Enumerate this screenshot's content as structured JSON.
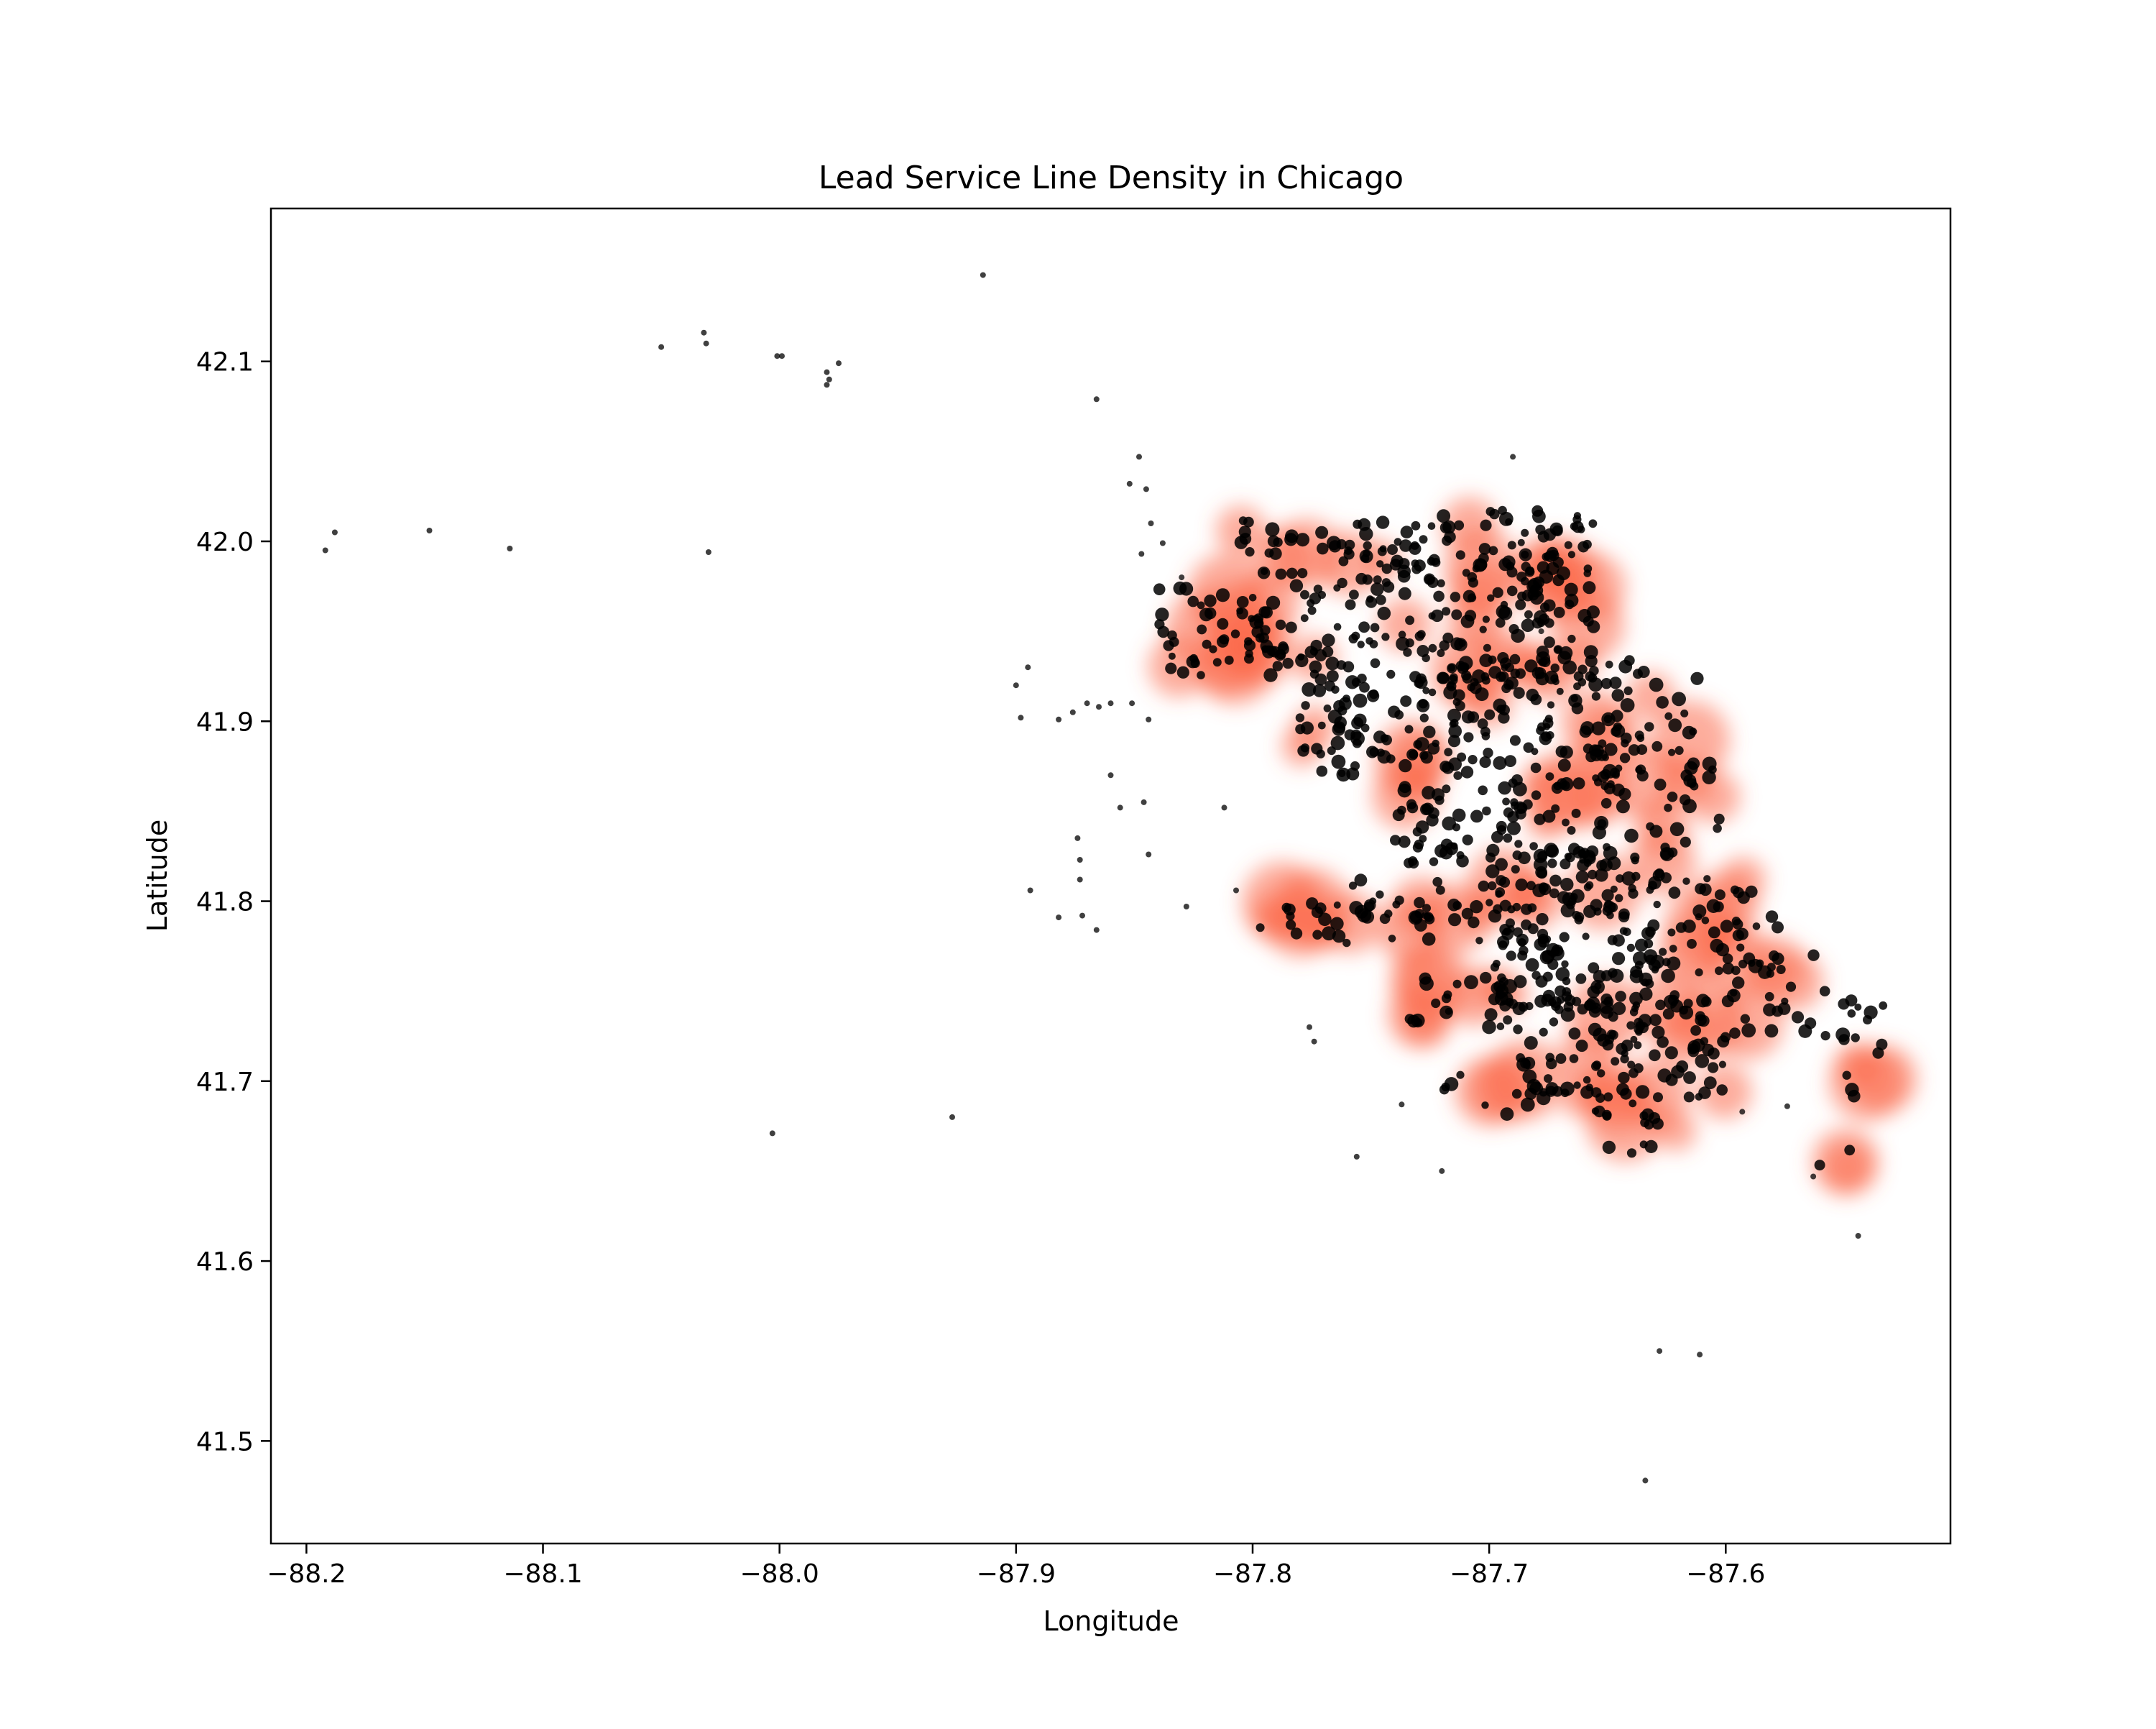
{
  "chart_data": {
    "type": "scatter",
    "title": "Lead Service Line Density in Chicago",
    "xlabel": "Longitude",
    "ylabel": "Latitude",
    "xlim": [
      -88.215,
      -87.505
    ],
    "ylim": [
      41.443,
      42.185
    ],
    "xticks": [
      -88.2,
      -88.1,
      -88.0,
      -87.9,
      -87.8,
      -87.7,
      -87.6
    ],
    "xtick_labels": [
      "−88.2",
      "−88.1",
      "−88.0",
      "−87.9",
      "−87.8",
      "−87.7",
      "−87.6"
    ],
    "yticks": [
      41.5,
      41.6,
      41.7,
      41.8,
      41.9,
      42.0,
      42.1
    ],
    "ytick_labels": [
      "41.5",
      "41.6",
      "41.7",
      "41.8",
      "41.9",
      "42.0",
      "42.1"
    ],
    "grid": false,
    "legend": "none",
    "density_color": "#fb6a4a",
    "point_color": "#000000",
    "outlier_points": [
      [
        -88.192,
        41.995
      ],
      [
        -88.188,
        42.005
      ],
      [
        -88.148,
        42.006
      ],
      [
        -88.114,
        41.996
      ],
      [
        -88.05,
        42.108
      ],
      [
        -88.032,
        42.116
      ],
      [
        -88.031,
        42.11
      ],
      [
        -88.03,
        41.994
      ],
      [
        -88.001,
        42.103
      ],
      [
        -87.999,
        42.103
      ],
      [
        -87.98,
        42.094
      ],
      [
        -87.98,
        42.087
      ],
      [
        -87.979,
        42.09
      ],
      [
        -87.975,
        42.099
      ],
      [
        -87.914,
        42.148
      ],
      [
        -88.003,
        41.671
      ],
      [
        -87.927,
        41.68
      ],
      [
        -87.866,
        42.079
      ],
      [
        -87.848,
        42.047
      ],
      [
        -87.845,
        42.029
      ],
      [
        -87.852,
        42.032
      ],
      [
        -87.843,
        42.01
      ],
      [
        -87.838,
        41.999
      ],
      [
        -87.83,
        41.98
      ],
      [
        -87.847,
        41.993
      ],
      [
        -87.9,
        41.92
      ],
      [
        -87.895,
        41.93
      ],
      [
        -87.898,
        41.902
      ],
      [
        -87.882,
        41.901
      ],
      [
        -87.876,
        41.905
      ],
      [
        -87.87,
        41.91
      ],
      [
        -87.865,
        41.908
      ],
      [
        -87.86,
        41.91
      ],
      [
        -87.851,
        41.91
      ],
      [
        -87.844,
        41.901
      ],
      [
        -87.86,
        41.87
      ],
      [
        -87.856,
        41.852
      ],
      [
        -87.846,
        41.855
      ],
      [
        -87.844,
        41.826
      ],
      [
        -87.874,
        41.835
      ],
      [
        -87.873,
        41.823
      ],
      [
        -87.873,
        41.812
      ],
      [
        -87.882,
        41.791
      ],
      [
        -87.872,
        41.792
      ],
      [
        -87.866,
        41.784
      ],
      [
        -87.894,
        41.806
      ],
      [
        -87.828,
        41.797
      ],
      [
        -87.812,
        41.852
      ],
      [
        -87.807,
        41.806
      ],
      [
        -87.776,
        41.73
      ],
      [
        -87.774,
        41.722
      ],
      [
        -87.756,
        41.658
      ],
      [
        -87.737,
        41.687
      ],
      [
        -87.72,
        41.65
      ],
      [
        -87.69,
        42.047
      ],
      [
        -87.678,
        41.95
      ],
      [
        -87.628,
        41.55
      ],
      [
        -87.611,
        41.548
      ],
      [
        -87.634,
        41.478
      ],
      [
        -87.544,
        41.614
      ],
      [
        -87.593,
        41.683
      ],
      [
        -87.574,
        41.686
      ],
      [
        -87.563,
        41.647
      ]
    ]
  }
}
